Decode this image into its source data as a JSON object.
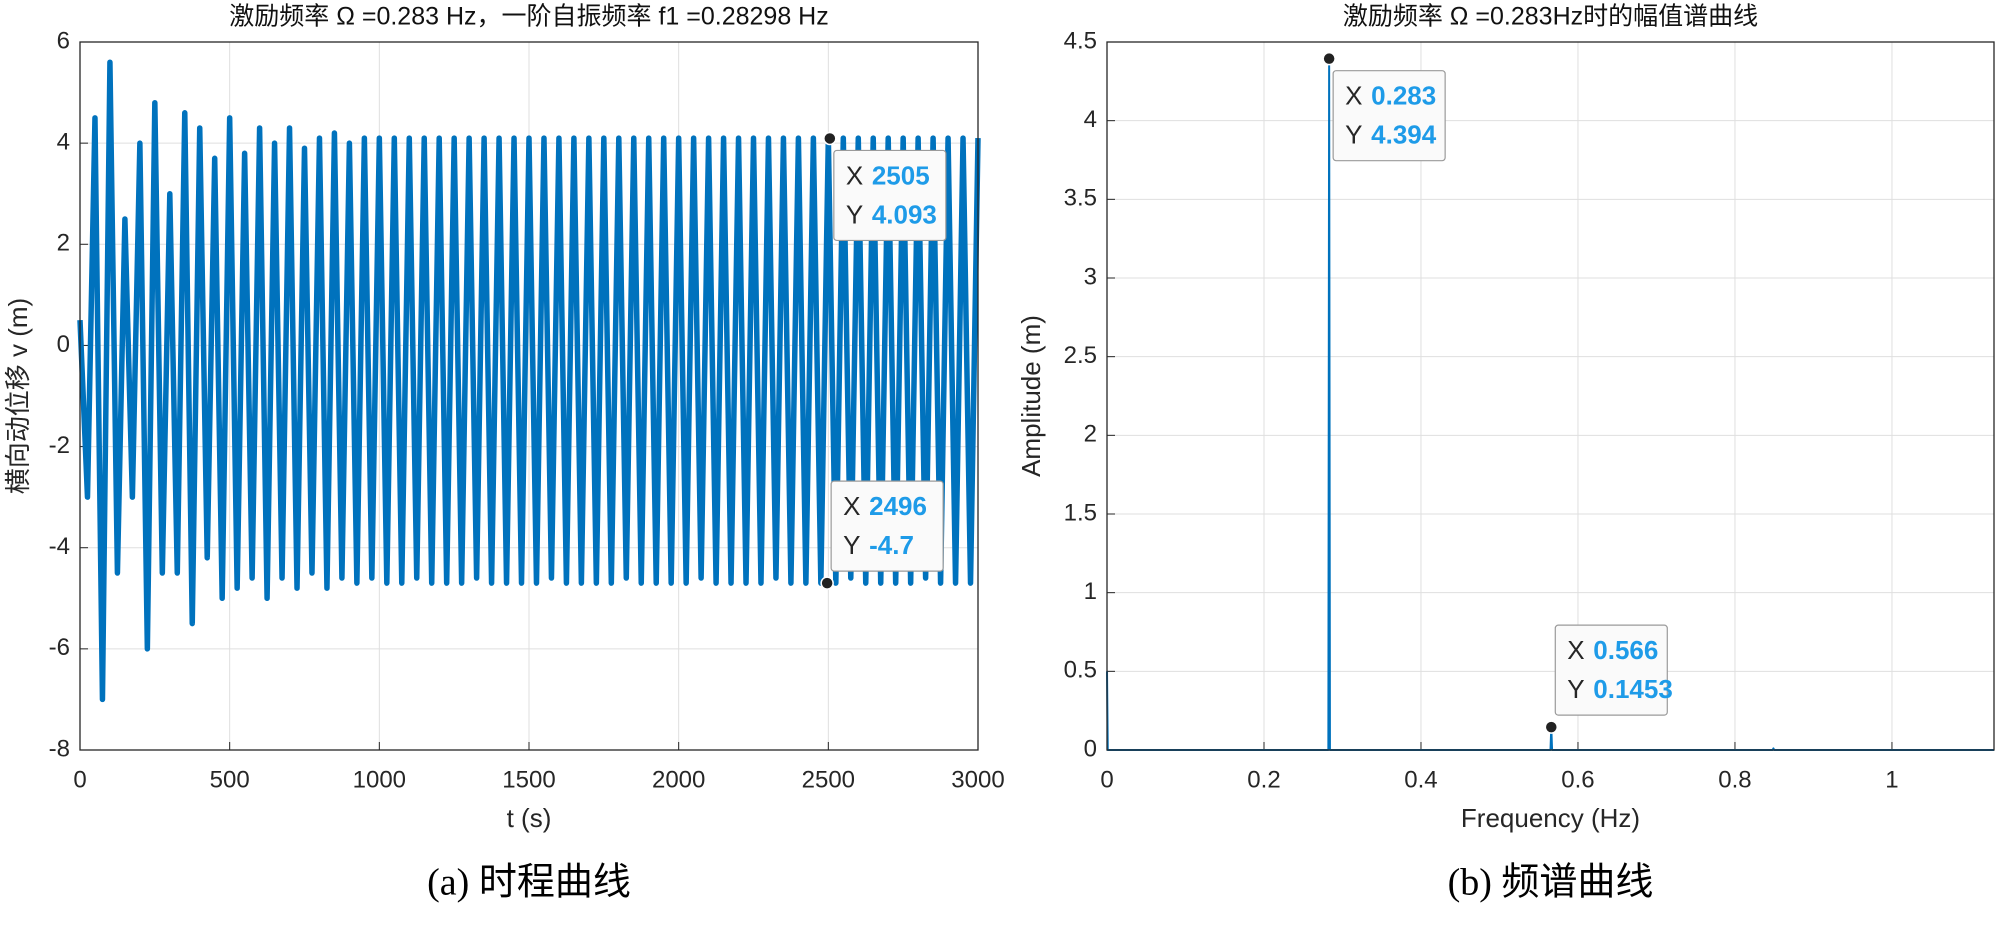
{
  "chart_data": [
    {
      "type": "line",
      "title": "激励频率 Ω =0.283 Hz，一阶自振频率 f1 =0.28298 Hz",
      "xlabel": "t (s)",
      "ylabel": "横向动位移 v (m)",
      "caption": "(a) 时程曲线",
      "color": "#0072bd",
      "grid": true,
      "xlim": [
        0,
        3000
      ],
      "ylim": [
        -8,
        6
      ],
      "xticks": [
        0,
        500,
        1000,
        1500,
        2000,
        2500,
        3000
      ],
      "yticks": [
        -8,
        -6,
        -4,
        -2,
        0,
        2,
        4,
        6
      ],
      "x": [
        0,
        25,
        50,
        75,
        100,
        125,
        150,
        175,
        200,
        225,
        250,
        275,
        300,
        325,
        350,
        375,
        400,
        425,
        450,
        475,
        500,
        525,
        550,
        575,
        600,
        625,
        650,
        675,
        700,
        725,
        750,
        775,
        800,
        825,
        850,
        875,
        900,
        925,
        950,
        975,
        1000,
        1025,
        1050,
        1075,
        1100,
        1125,
        1150,
        1175,
        1200,
        1225,
        1250,
        1275,
        1300,
        1325,
        1350,
        1375,
        1400,
        1425,
        1450,
        1475,
        1500,
        1525,
        1550,
        1575,
        1600,
        1625,
        1650,
        1675,
        1700,
        1725,
        1750,
        1775,
        1800,
        1825,
        1850,
        1875,
        1900,
        1925,
        1950,
        1975,
        2000,
        2025,
        2050,
        2075,
        2100,
        2125,
        2150,
        2175,
        2200,
        2225,
        2250,
        2275,
        2300,
        2325,
        2350,
        2375,
        2400,
        2425,
        2450,
        2475,
        2500,
        2525,
        2550,
        2575,
        2600,
        2625,
        2650,
        2675,
        2700,
        2725,
        2750,
        2775,
        2800,
        2825,
        2850,
        2875,
        2900,
        2925,
        2950,
        2975,
        3000
      ],
      "values": [
        0.5,
        -3,
        4.5,
        -7,
        5.6,
        -4.5,
        2.5,
        -3,
        4,
        -6,
        4.8,
        -4.5,
        3,
        -4.5,
        4.6,
        -5.5,
        4.3,
        -4.2,
        3.7,
        -5,
        4.5,
        -4.8,
        3.8,
        -4.6,
        4.3,
        -5,
        4,
        -4.6,
        4.3,
        -4.8,
        3.9,
        -4.5,
        4.1,
        -4.8,
        4.2,
        -4.6,
        4.0,
        -4.7,
        4.1,
        -4.6,
        4.1,
        -4.7,
        4.1,
        -4.7,
        4.1,
        -4.6,
        4.1,
        -4.7,
        4.1,
        -4.7,
        4.1,
        -4.7,
        4.1,
        -4.6,
        4.1,
        -4.7,
        4.1,
        -4.7,
        4.1,
        -4.7,
        4.1,
        -4.7,
        4.1,
        -4.6,
        4.1,
        -4.7,
        4.1,
        -4.7,
        4.1,
        -4.7,
        4.1,
        -4.7,
        4.1,
        -4.6,
        4.1,
        -4.7,
        4.1,
        -4.7,
        4.1,
        -4.7,
        4.1,
        -4.7,
        4.1,
        -4.6,
        4.1,
        -4.7,
        4.1,
        -4.7,
        4.1,
        -4.7,
        4.1,
        -4.7,
        4.1,
        -4.6,
        4.1,
        -4.7,
        4.1,
        -4.7,
        4.1,
        -4.7,
        4.1,
        -4.7,
        4.1,
        -4.6,
        4.1,
        -4.7,
        4.1,
        -4.7,
        4.1,
        -4.7,
        4.1,
        -4.7,
        4.1,
        -4.6,
        4.1,
        -4.7,
        4.1,
        -4.7,
        4.1,
        -4.7,
        4.1
      ],
      "datatips": [
        {
          "x_label": "X",
          "x": 2505,
          "y_label": "Y",
          "y": 4.093
        },
        {
          "x_label": "X",
          "x": 2496,
          "y_label": "Y",
          "y": -4.7
        }
      ]
    },
    {
      "type": "line",
      "title": "激励频率 Ω =0.283Hz时的幅值谱曲线",
      "xlabel": "Frequency (Hz)",
      "ylabel": "Amplitude (m)",
      "caption": "(b) 频谱曲线",
      "color": "#0072bd",
      "grid": true,
      "xlim": [
        0,
        1.13
      ],
      "ylim": [
        0,
        4.5
      ],
      "xticks": [
        0,
        0.2,
        0.4,
        0.6,
        0.8,
        1
      ],
      "yticks": [
        0,
        0.5,
        1,
        1.5,
        2,
        2.5,
        3,
        3.5,
        4,
        4.5
      ],
      "x": [
        0,
        0.001,
        0.282,
        0.283,
        0.284,
        0.565,
        0.566,
        0.567,
        0.848,
        0.849,
        0.85,
        1.13
      ],
      "values": [
        0.5,
        0,
        0,
        4.394,
        0,
        0,
        0.1453,
        0,
        0,
        0.01,
        0,
        0
      ],
      "datatips": [
        {
          "x_label": "X",
          "x": 0.283,
          "y_label": "Y",
          "y": 4.394
        },
        {
          "x_label": "X",
          "x": 0.566,
          "y_label": "Y",
          "y": 0.1453
        }
      ]
    }
  ]
}
